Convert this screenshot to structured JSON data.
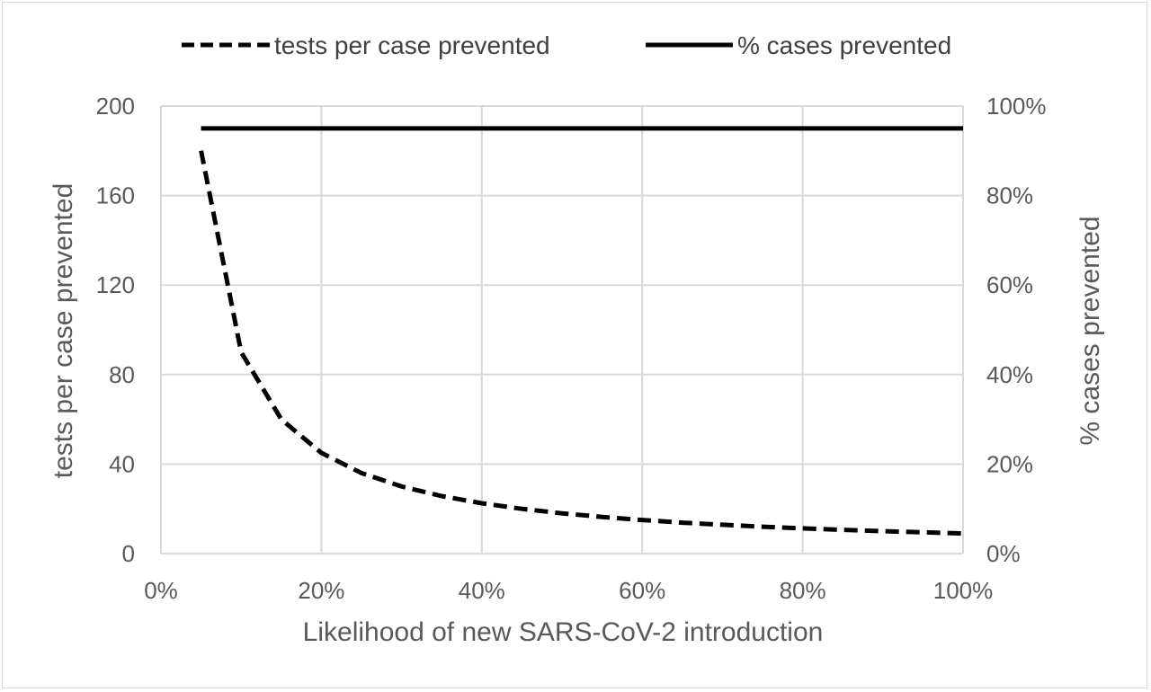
{
  "chart_data": {
    "type": "line",
    "title": "",
    "xlabel": "Likelihood of new SARS-CoV-2 introduction",
    "ylabel": "tests per case prevented",
    "y2label": "% cases prevented",
    "xlim": [
      0,
      1
    ],
    "ylim": [
      0,
      200
    ],
    "y2lim": [
      0,
      1
    ],
    "x_ticks": [
      "0%",
      "20%",
      "40%",
      "60%",
      "80%",
      "100%"
    ],
    "y_ticks": [
      "0",
      "40",
      "80",
      "120",
      "160",
      "200"
    ],
    "y2_ticks": [
      "0%",
      "20%",
      "40%",
      "60%",
      "80%",
      "100%"
    ],
    "grid": true,
    "legend_position": "top",
    "series": [
      {
        "name": "tests per case prevented",
        "axis": "left",
        "style": "dashed",
        "color": "#000000",
        "x": [
          0.05,
          0.1,
          0.15,
          0.2,
          0.25,
          0.3,
          0.35,
          0.4,
          0.45,
          0.5,
          0.55,
          0.6,
          0.65,
          0.7,
          0.75,
          0.8,
          0.85,
          0.9,
          0.95,
          1.0
        ],
        "values": [
          180,
          90,
          60,
          45,
          36,
          30,
          25.7,
          22.5,
          20,
          18,
          16.4,
          15,
          13.8,
          12.9,
          12,
          11.3,
          10.6,
          10,
          9.5,
          9
        ]
      },
      {
        "name": "% cases prevented",
        "axis": "right",
        "style": "solid",
        "color": "#000000",
        "x": [
          0.05,
          1.0
        ],
        "values": [
          0.95,
          0.95
        ]
      }
    ]
  }
}
